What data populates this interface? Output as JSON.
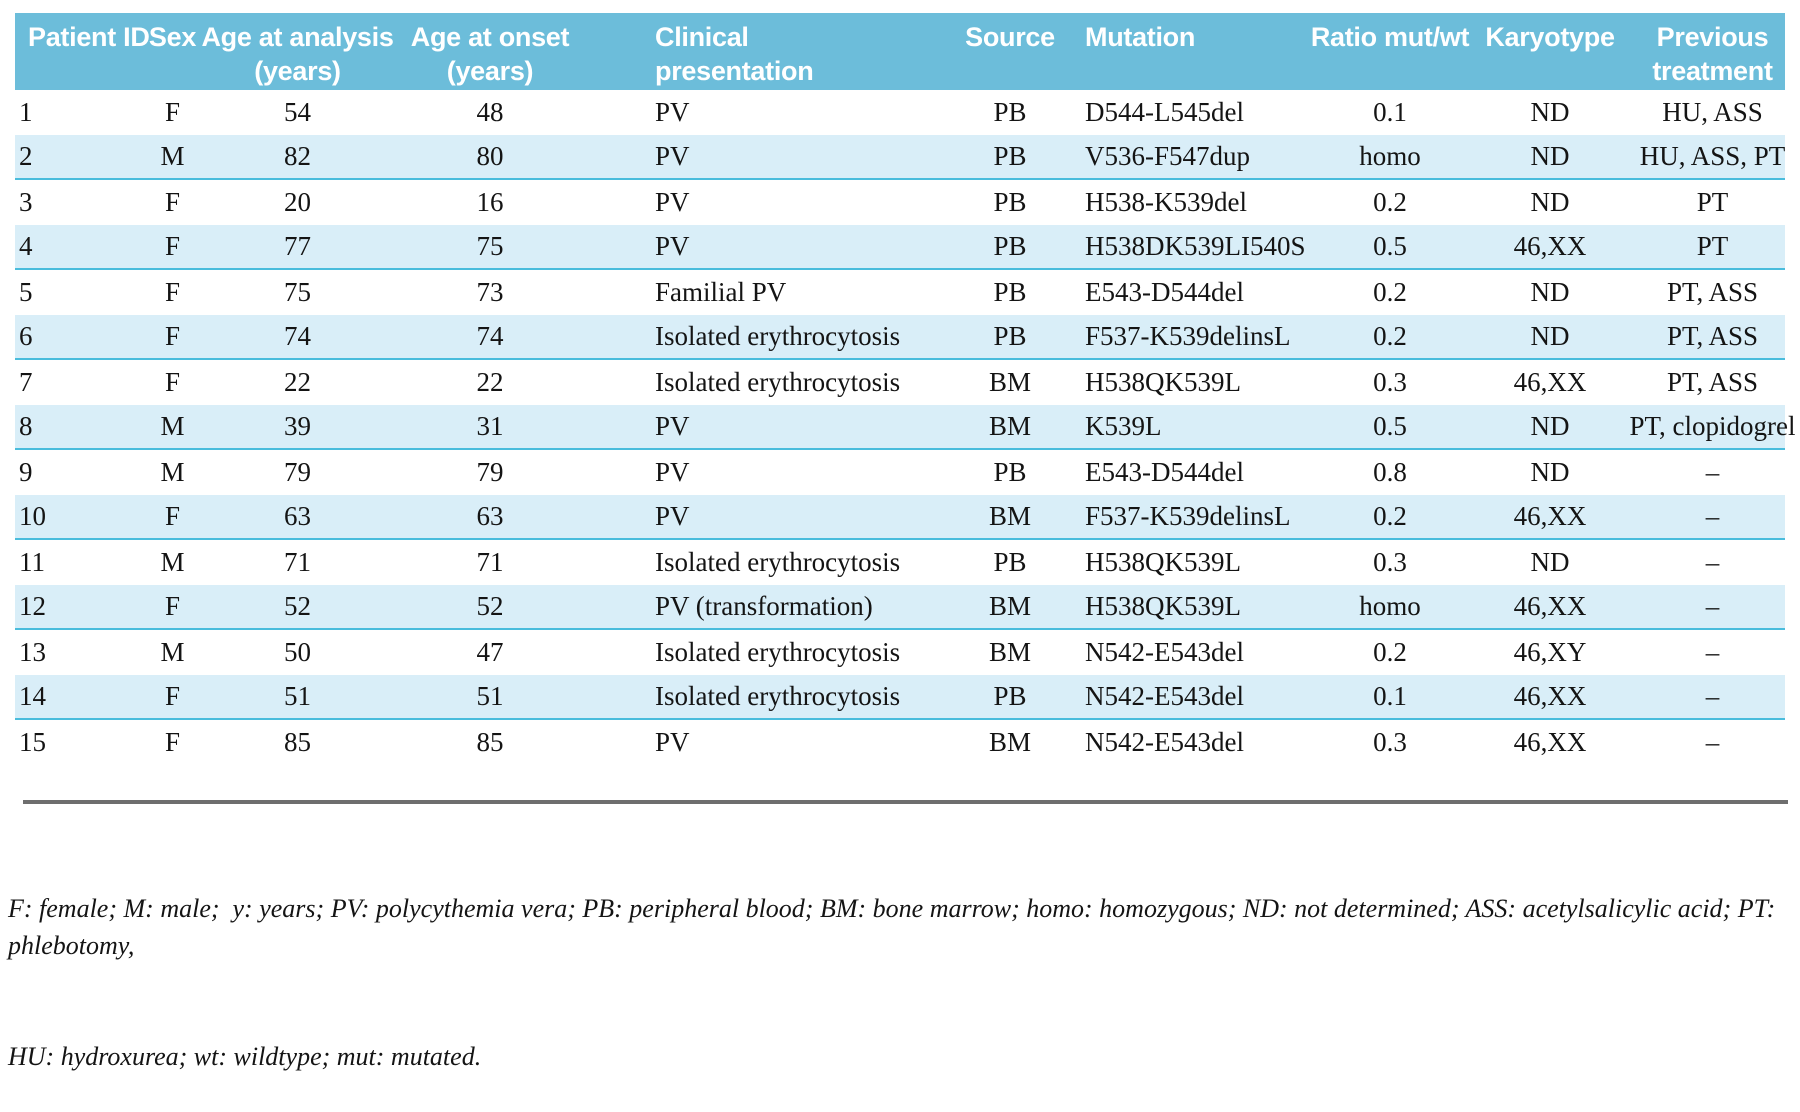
{
  "colors": {
    "header_bg": "#6cbdda",
    "alt_row_bg": "#d9eef8",
    "alt_row_line": "#49bcdc",
    "rule": "#6e6e6e",
    "text": "#141414",
    "header_text": "#ffffff"
  },
  "table": {
    "columns": [
      {
        "label": "Patient ID"
      },
      {
        "label": "Sex"
      },
      {
        "label": "Age at analysis\n(years)"
      },
      {
        "label": "Age at onset\n(years)"
      },
      {
        "label": "Clinical\npresentation"
      },
      {
        "label": "Source"
      },
      {
        "label": "Mutation"
      },
      {
        "label": "Ratio mut/wt"
      },
      {
        "label": "Karyotype"
      },
      {
        "label": "Previous\ntreatment"
      }
    ],
    "rows": [
      [
        "1",
        "F",
        "54",
        "48",
        "PV",
        "PB",
        "D544-L545del",
        "0.1",
        "ND",
        "HU, ASS"
      ],
      [
        "2",
        "M",
        "82",
        "80",
        "PV",
        "PB",
        "V536-F547dup",
        "homo",
        "ND",
        "HU, ASS, PT"
      ],
      [
        "3",
        "F",
        "20",
        "16",
        "PV",
        "PB",
        "H538-K539del",
        "0.2",
        "ND",
        "PT"
      ],
      [
        "4",
        "F",
        "77",
        "75",
        "PV",
        "PB",
        "H538DK539LI540S",
        "0.5",
        "46,XX",
        "PT"
      ],
      [
        "5",
        "F",
        "75",
        "73",
        "Familial PV",
        "PB",
        "E543-D544del",
        "0.2",
        "ND",
        "PT, ASS"
      ],
      [
        "6",
        "F",
        "74",
        "74",
        "Isolated erythrocytosis",
        "PB",
        "F537-K539delinsL",
        "0.2",
        "ND",
        "PT, ASS"
      ],
      [
        "7",
        "F",
        "22",
        "22",
        "Isolated erythrocytosis",
        "BM",
        "H538QK539L",
        "0.3",
        "46,XX",
        "PT, ASS"
      ],
      [
        "8",
        "M",
        "39",
        "31",
        "PV",
        "BM",
        "K539L",
        "0.5",
        "ND",
        "PT, clopidogrel"
      ],
      [
        "9",
        "M",
        "79",
        "79",
        "PV",
        "PB",
        "E543-D544del",
        "0.8",
        "ND",
        "–"
      ],
      [
        "10",
        "F",
        "63",
        "63",
        "PV",
        "BM",
        "F537-K539delinsL",
        "0.2",
        "46,XX",
        "–"
      ],
      [
        "11",
        "M",
        "71",
        "71",
        "Isolated erythrocytosis",
        "PB",
        "H538QK539L",
        "0.3",
        "ND",
        "–"
      ],
      [
        "12",
        "F",
        "52",
        "52",
        "PV (transformation)",
        "BM",
        "H538QK539L",
        "homo",
        "46,XX",
        "–"
      ],
      [
        "13",
        "M",
        "50",
        "47",
        "Isolated erythrocytosis",
        "BM",
        "N542-E543del",
        "0.2",
        "46,XY",
        "–"
      ],
      [
        "14",
        "F",
        "51",
        "51",
        "Isolated erythrocytosis",
        "PB",
        "N542-E543del",
        "0.1",
        "46,XX",
        "–"
      ],
      [
        "15",
        "F",
        "85",
        "85",
        "PV",
        "BM",
        "N542-E543del",
        "0.3",
        "46,XX",
        "–"
      ]
    ]
  },
  "footnote": {
    "line1": "F: female; M: male;  y: years; PV: polycythemia vera; PB: peripheral blood; BM: bone marrow; homo: homozygous; ND: not determined; ASS: acetylsalicylic acid; PT: phlebotomy,",
    "line2": "HU: hydroxurea; wt: wildtype; mut: mutated."
  }
}
